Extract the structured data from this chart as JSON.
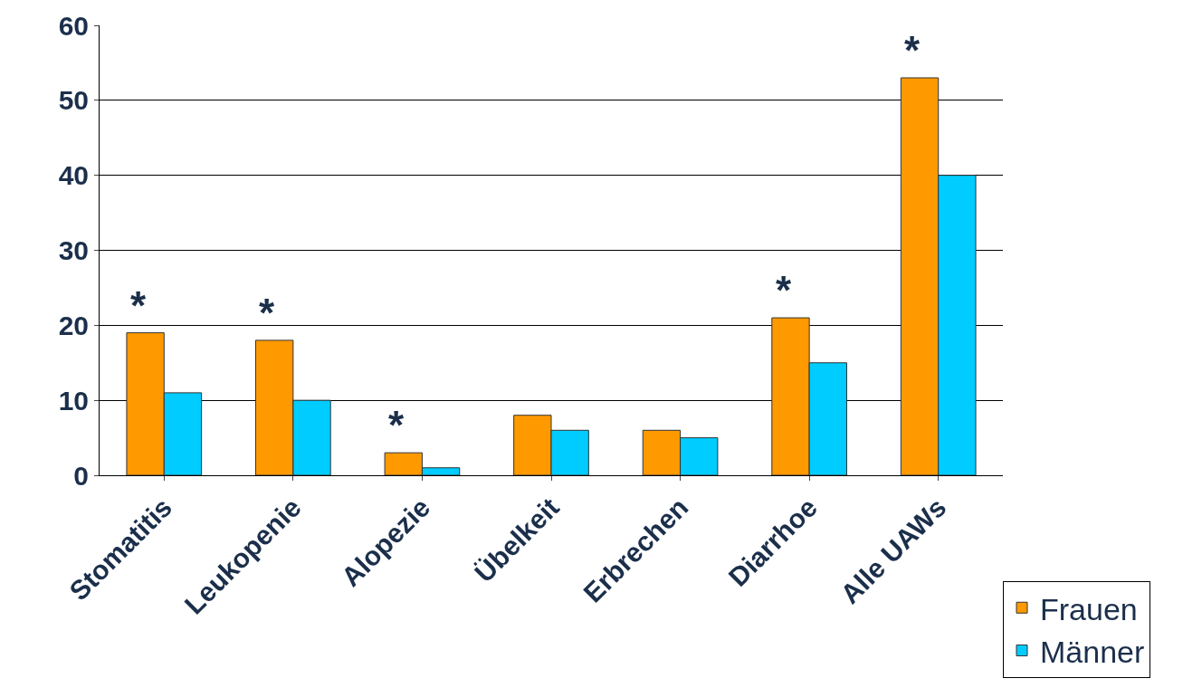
{
  "chart_data": {
    "type": "bar",
    "categories": [
      "Stomatitis",
      "Leukopenie",
      "Alopezie",
      "Übelkeit",
      "Erbrechen",
      "Diarrhoe",
      "Alle UAWs"
    ],
    "series": [
      {
        "name": "Frauen",
        "color": "#ff9900",
        "values": [
          19,
          18,
          3,
          8,
          6,
          21,
          53
        ]
      },
      {
        "name": "Männer",
        "color": "#00ccff",
        "values": [
          11,
          10,
          1,
          6,
          5,
          15,
          40
        ]
      }
    ],
    "ylim": [
      0,
      60
    ],
    "yticks": [
      0,
      10,
      20,
      30,
      40,
      50,
      60
    ],
    "grid": "y",
    "legend": "bottom right",
    "annotations": [
      {
        "text": "*",
        "x": "Stomatitis",
        "y": 19
      },
      {
        "text": "*",
        "x": "Leukopenie",
        "y": 18
      },
      {
        "text": "*",
        "x": "Alopezie",
        "y": 3
      },
      {
        "text": "*",
        "x": "Diarrhoe",
        "y": 21
      },
      {
        "text": "*",
        "x": "Alle UAWs",
        "y": 53
      }
    ]
  }
}
